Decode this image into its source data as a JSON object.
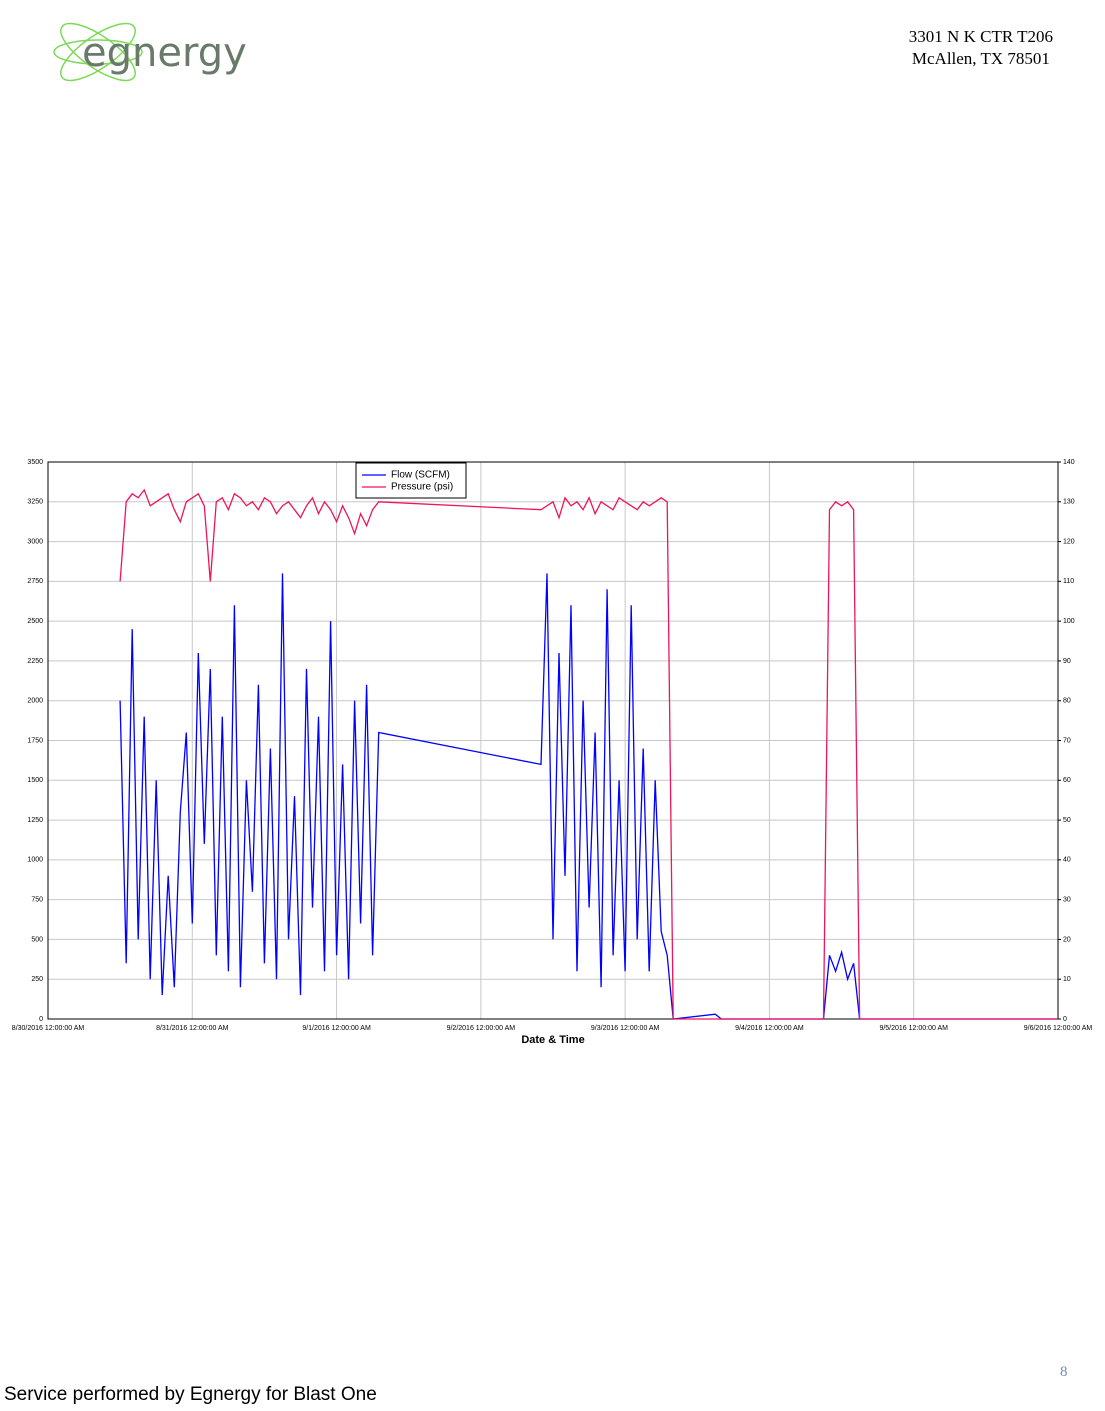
{
  "header": {
    "logo_text": "egnergy",
    "address": [
      "3301 N K CTR T206",
      "McAllen, TX 78501"
    ]
  },
  "chart_data": {
    "type": "line",
    "x_label": "Date & Time",
    "x": [
      "2016-08-30T12:00",
      "2016-08-30T13:00",
      "2016-08-30T14:00",
      "2016-08-30T15:00",
      "2016-08-30T16:00",
      "2016-08-30T17:00",
      "2016-08-30T18:00",
      "2016-08-30T19:00",
      "2016-08-30T20:00",
      "2016-08-30T21:00",
      "2016-08-30T22:00",
      "2016-08-30T23:00",
      "2016-08-31T00:00",
      "2016-08-31T01:00",
      "2016-08-31T02:00",
      "2016-08-31T03:00",
      "2016-08-31T04:00",
      "2016-08-31T05:00",
      "2016-08-31T06:00",
      "2016-08-31T07:00",
      "2016-08-31T08:00",
      "2016-08-31T09:00",
      "2016-08-31T10:00",
      "2016-08-31T11:00",
      "2016-08-31T12:00",
      "2016-08-31T13:00",
      "2016-08-31T14:00",
      "2016-08-31T15:00",
      "2016-08-31T16:00",
      "2016-08-31T17:00",
      "2016-08-31T18:00",
      "2016-08-31T19:00",
      "2016-08-31T20:00",
      "2016-08-31T21:00",
      "2016-08-31T22:00",
      "2016-08-31T23:00",
      "2016-09-01T00:00",
      "2016-09-01T01:00",
      "2016-09-01T02:00",
      "2016-09-01T03:00",
      "2016-09-01T04:00",
      "2016-09-01T05:00",
      "2016-09-01T06:00",
      "2016-09-01T07:00",
      "2016-09-02T10:00",
      "2016-09-02T11:00",
      "2016-09-02T12:00",
      "2016-09-02T13:00",
      "2016-09-02T14:00",
      "2016-09-02T15:00",
      "2016-09-02T16:00",
      "2016-09-02T17:00",
      "2016-09-02T18:00",
      "2016-09-02T19:00",
      "2016-09-02T20:00",
      "2016-09-02T21:00",
      "2016-09-02T22:00",
      "2016-09-02T23:00",
      "2016-09-03T00:00",
      "2016-09-03T01:00",
      "2016-09-03T02:00",
      "2016-09-03T03:00",
      "2016-09-03T04:00",
      "2016-09-03T05:00",
      "2016-09-03T06:00",
      "2016-09-03T07:00",
      "2016-09-03T08:00",
      "2016-09-03T15:00",
      "2016-09-03T16:00",
      "2016-09-04T09:00",
      "2016-09-04T10:00",
      "2016-09-04T11:00",
      "2016-09-04T12:00",
      "2016-09-04T13:00",
      "2016-09-04T14:00",
      "2016-09-04T15:00",
      "2016-09-06T00:00"
    ],
    "series": [
      {
        "name": "Flow (SCFM)",
        "color": "#0000ff",
        "values": [
          2000,
          350,
          2450,
          500,
          1900,
          250,
          1500,
          150,
          900,
          200,
          1300,
          1800,
          600,
          2300,
          1100,
          2200,
          400,
          1900,
          300,
          2600,
          200,
          1500,
          800,
          2100,
          350,
          1700,
          250,
          2800,
          500,
          1400,
          150,
          2200,
          700,
          1900,
          300,
          2500,
          400,
          1600,
          250,
          2000,
          600,
          2100,
          400,
          1800,
          1600,
          2800,
          500,
          2300,
          900,
          2600,
          300,
          2000,
          700,
          1800,
          200,
          2700,
          400,
          1500,
          300,
          2600,
          500,
          1700,
          300,
          1500,
          550,
          400,
          0,
          30,
          0,
          0,
          400,
          300,
          420,
          250,
          350,
          0,
          0
        ]
      },
      {
        "name": "Pressure (psi)",
        "color": "#f0145a",
        "axis": "y2",
        "values": [
          110,
          130,
          132,
          131,
          133,
          129,
          130,
          131,
          132,
          128,
          125,
          130,
          131,
          132,
          129,
          110,
          130,
          131,
          128,
          132,
          131,
          129,
          130,
          128,
          131,
          130,
          127,
          129,
          130,
          128,
          126,
          129,
          131,
          127,
          130,
          128,
          125,
          129,
          126,
          122,
          127,
          124,
          128,
          130,
          128,
          129,
          130,
          126,
          131,
          129,
          130,
          128,
          131,
          127,
          130,
          129,
          128,
          131,
          130,
          129,
          128,
          130,
          129,
          130,
          131,
          130,
          0,
          0,
          0,
          0,
          128,
          130,
          129,
          130,
          128,
          0,
          0
        ]
      }
    ],
    "xlim": [
      "2016-08-30T00:00",
      "2016-09-06T00:00"
    ],
    "xticks": [
      {
        "value": "2016-08-30T00:00",
        "label": "8/30/2016 12:00:00 AM"
      },
      {
        "value": "2016-08-31T00:00",
        "label": "8/31/2016 12:00:00 AM"
      },
      {
        "value": "2016-09-01T00:00",
        "label": "9/1/2016 12:00:00 AM"
      },
      {
        "value": "2016-09-02T00:00",
        "label": "9/2/2016 12:00:00 AM"
      },
      {
        "value": "2016-09-03T00:00",
        "label": "9/3/2016 12:00:00 AM"
      },
      {
        "value": "2016-09-04T00:00",
        "label": "9/4/2016 12:00:00 AM"
      },
      {
        "value": "2016-09-05T00:00",
        "label": "9/5/2016 12:00:00 AM"
      },
      {
        "value": "2016-09-06T00:00",
        "label": "9/6/2016 12:00:00 AM"
      }
    ],
    "ylim": [
      0,
      3500
    ],
    "yticks": [
      0,
      250,
      500,
      750,
      1000,
      1250,
      1500,
      1750,
      2000,
      2250,
      2500,
      2750,
      3000,
      3250,
      3500
    ],
    "y2lim": [
      0,
      140
    ],
    "y2ticks": [
      0,
      10,
      20,
      30,
      40,
      50,
      60,
      70,
      80,
      90,
      100,
      110,
      120,
      130,
      140
    ],
    "grid": true
  },
  "footer": {
    "text": "Service performed by Egnergy for Blast One",
    "page_number": "8"
  }
}
